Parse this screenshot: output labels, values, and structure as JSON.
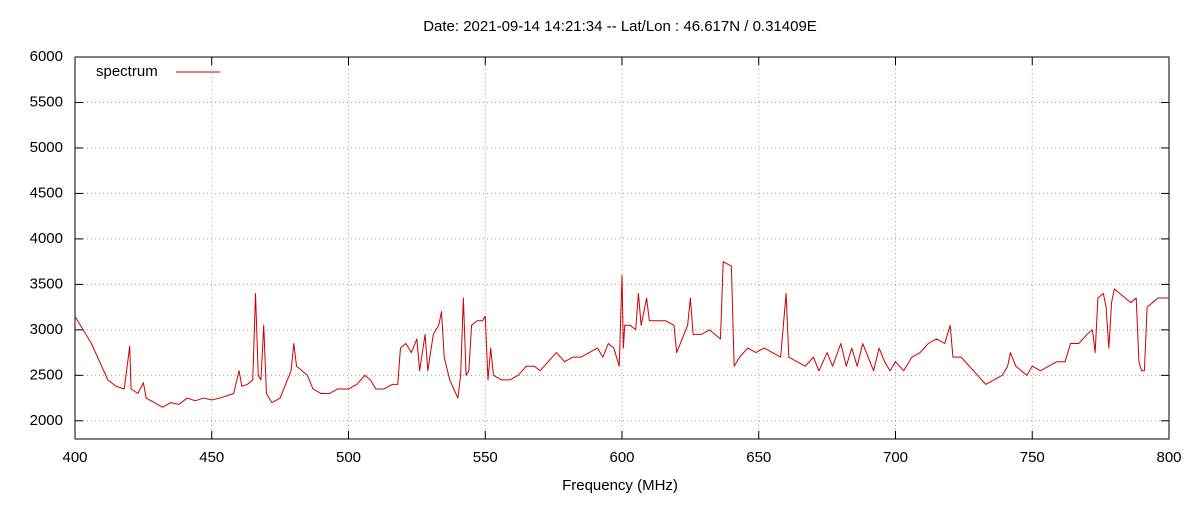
{
  "chart_data": {
    "type": "line",
    "title": "Date: 2021-09-14 14:21:34  --  Lat/Lon : 46.617N / 0.31409E",
    "xlabel": "Frequency (MHz)",
    "legend": "top-left",
    "grid": true,
    "xlim": [
      400,
      800
    ],
    "xticks": [
      400,
      450,
      500,
      550,
      600,
      650,
      700,
      750,
      800
    ],
    "ylim": [
      1800,
      6000
    ],
    "yticks": [
      2000,
      2500,
      3000,
      3500,
      4000,
      4500,
      5000,
      5500,
      6000
    ],
    "x": [
      400,
      403,
      406,
      409,
      412,
      415,
      418,
      420,
      420.5,
      423,
      425,
      426,
      429,
      432,
      435,
      438,
      441,
      444,
      447,
      450,
      453,
      456,
      458,
      460,
      461,
      463,
      465,
      466,
      467,
      468,
      469,
      470,
      472,
      475,
      477,
      479,
      480,
      481,
      483,
      485,
      487,
      490,
      493,
      496,
      500,
      503,
      506,
      508,
      510,
      513,
      516,
      518,
      519,
      521,
      523,
      525,
      526,
      528,
      529,
      531,
      533,
      534,
      535,
      537,
      540,
      541,
      542,
      543,
      544,
      545,
      547,
      549,
      550,
      551,
      552,
      553,
      556,
      559,
      562,
      565,
      568,
      570,
      573,
      576,
      579,
      582,
      585,
      588,
      591,
      593,
      595,
      597,
      599,
      600,
      600.5,
      601,
      603,
      605,
      606,
      607,
      609,
      610,
      613,
      616,
      619,
      620,
      622,
      624,
      625,
      626,
      629,
      632,
      634,
      636,
      637,
      640,
      641,
      643,
      646,
      649,
      652,
      655,
      658,
      660,
      661,
      664,
      667,
      670,
      672,
      675,
      677,
      680,
      682,
      684,
      686,
      688,
      690,
      692,
      694,
      696,
      698,
      700,
      703,
      706,
      709,
      712,
      715,
      718,
      720,
      721,
      724,
      727,
      730,
      733,
      736,
      739,
      741,
      742,
      744,
      746,
      748,
      750,
      753,
      756,
      759,
      762,
      764,
      767,
      770,
      772,
      773,
      774,
      776,
      777,
      778,
      779,
      780,
      782,
      784,
      786,
      788,
      789,
      790,
      791,
      792,
      794,
      796,
      798,
      800
    ],
    "series": [
      {
        "name": "spectrum",
        "color": "#cc0000",
        "values": [
          3150,
          3000,
          2850,
          2650,
          2450,
          2380,
          2350,
          2820,
          2350,
          2300,
          2420,
          2250,
          2200,
          2150,
          2200,
          2180,
          2250,
          2220,
          2250,
          2230,
          2250,
          2280,
          2300,
          2550,
          2380,
          2400,
          2450,
          3400,
          2500,
          2450,
          3050,
          2300,
          2200,
          2250,
          2400,
          2550,
          2850,
          2600,
          2550,
          2500,
          2350,
          2300,
          2300,
          2350,
          2350,
          2400,
          2500,
          2450,
          2350,
          2350,
          2400,
          2400,
          2800,
          2850,
          2750,
          2900,
          2550,
          2950,
          2550,
          2950,
          3050,
          3200,
          2700,
          2450,
          2250,
          2500,
          3350,
          2500,
          2550,
          3050,
          3100,
          3100,
          3150,
          2450,
          2800,
          2500,
          2450,
          2450,
          2500,
          2600,
          2600,
          2550,
          2650,
          2750,
          2650,
          2700,
          2700,
          2750,
          2800,
          2700,
          2850,
          2800,
          2600,
          3600,
          2800,
          3050,
          3050,
          3000,
          3400,
          3050,
          3350,
          3100,
          3100,
          3100,
          3050,
          2750,
          2900,
          3050,
          3350,
          2950,
          2950,
          3000,
          2950,
          2900,
          3750,
          3700,
          2600,
          2700,
          2800,
          2750,
          2800,
          2750,
          2700,
          3400,
          2700,
          2650,
          2600,
          2700,
          2550,
          2750,
          2600,
          2850,
          2600,
          2800,
          2600,
          2850,
          2700,
          2550,
          2800,
          2650,
          2550,
          2650,
          2550,
          2700,
          2750,
          2850,
          2900,
          2850,
          3050,
          2700,
          2700,
          2600,
          2500,
          2400,
          2450,
          2500,
          2600,
          2750,
          2600,
          2550,
          2500,
          2600,
          2550,
          2600,
          2650,
          2650,
          2850,
          2850,
          2950,
          3000,
          2750,
          3350,
          3400,
          3250,
          2800,
          3300,
          3450,
          3400,
          3350,
          3300,
          3350,
          2650,
          2550,
          2550,
          3250,
          3300,
          3350,
          3350,
          3350
        ]
      }
    ]
  }
}
